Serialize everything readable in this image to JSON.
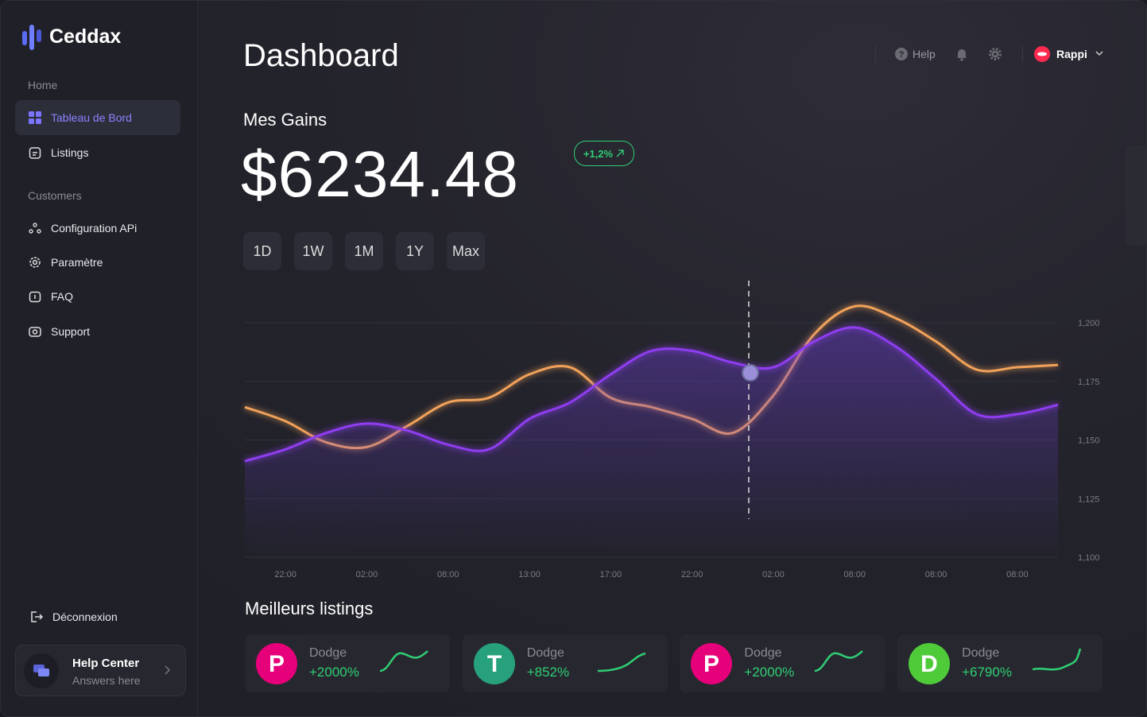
{
  "sidebar": {
    "brand": "Ceddax",
    "sections": [
      {
        "title": "Home",
        "items": [
          "Tableau de Bord",
          "Listings"
        ]
      },
      {
        "title": "Customers",
        "items": [
          "Configuration APi",
          "Paramètre",
          "FAQ",
          "Support"
        ]
      }
    ],
    "logout": "Déconnexion",
    "help_center": {
      "title": "Help Center",
      "subtitle": "Answers here"
    }
  },
  "header": {
    "title": "Dashboard",
    "help": "Help",
    "user": "Rappi"
  },
  "gains": {
    "title": "Mes Gains",
    "amount": "$6234.48",
    "change": "+1,2%",
    "periods": [
      "1D",
      "1W",
      "1M",
      "1Y",
      "Max"
    ]
  },
  "chart_data": {
    "type": "line",
    "categories": [
      null,
      "22:00",
      null,
      "02:00",
      null,
      "08:00",
      null,
      "13:00",
      null,
      "17:00",
      null,
      "22:00",
      null,
      "02:00",
      null,
      "08:00",
      null,
      "08:00",
      null,
      "08:00",
      null
    ],
    "series": [
      {
        "color": "#f2a25a",
        "values": [
          1164,
          1158,
          1149,
          1147,
          1156,
          1166,
          1168,
          1178,
          1181,
          1168,
          1164,
          1159,
          1153,
          1169,
          1195,
          1207,
          1202,
          1192,
          1180,
          1181,
          1182
        ]
      },
      {
        "color": "#8f3df0",
        "values": [
          1141,
          1146,
          1153,
          1157,
          1154,
          1148,
          1146,
          1159,
          1166,
          1178,
          1188,
          1188,
          1183,
          1181,
          1192,
          1198,
          1190,
          1176,
          1161,
          1161,
          1165
        ]
      }
    ],
    "ylim": [
      1100,
      1210
    ],
    "yticks": [
      {
        "value": 1100,
        "label": "1,100"
      },
      {
        "value": 1125,
        "label": "1,125"
      },
      {
        "value": 1150,
        "label": "1,150"
      },
      {
        "value": 1175,
        "label": "1,175"
      },
      {
        "value": 1200,
        "label": "1,200"
      }
    ],
    "grid": true
  },
  "listings": {
    "title": "Meilleurs listings",
    "items": [
      {
        "name": "Dodge",
        "change": "+2000%"
      },
      {
        "name": "Dodge",
        "change": "+852%"
      },
      {
        "name": "Dodge",
        "change": "+2000%"
      },
      {
        "name": "Dodge",
        "change": "+6790%"
      }
    ]
  }
}
